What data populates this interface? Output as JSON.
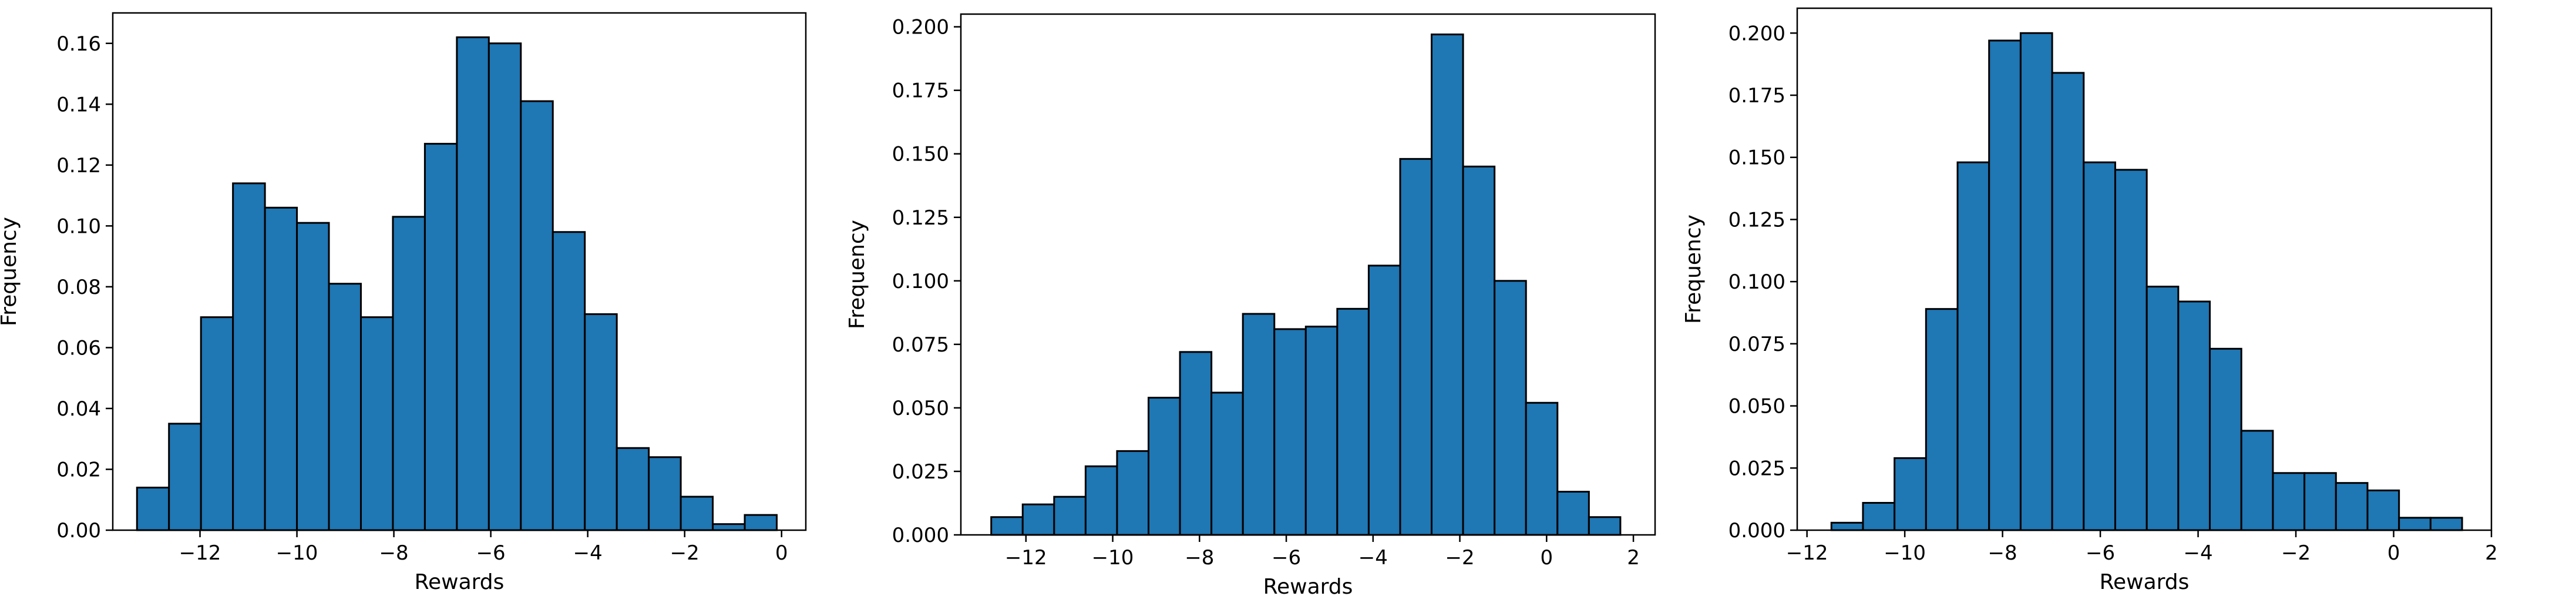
{
  "colors": {
    "bar": "#1f77b4",
    "edge": "#000000",
    "background": "#ffffff"
  },
  "chart_data": [
    {
      "type": "bar",
      "xlabel": "Rewards",
      "ylabel": "Frequency",
      "xlim": [
        -13.8,
        0.5
      ],
      "ylim": [
        0,
        0.17
      ],
      "xticks": [
        -12,
        -10,
        -8,
        -6,
        -4,
        -2,
        0
      ],
      "xtick_labels": [
        "−12",
        "−10",
        "−8",
        "−6",
        "−4",
        "−2",
        "0"
      ],
      "yticks": [
        0,
        0.02,
        0.04,
        0.06,
        0.08,
        0.1,
        0.12,
        0.14,
        0.16
      ],
      "ytick_labels": [
        "0.00",
        "0.02",
        "0.04",
        "0.06",
        "0.08",
        "0.10",
        "0.12",
        "0.14",
        "0.16"
      ],
      "bins": {
        "start": -13.3,
        "width": 0.66
      },
      "values": [
        0.014,
        0.035,
        0.07,
        0.114,
        0.106,
        0.101,
        0.081,
        0.07,
        0.103,
        0.127,
        0.162,
        0.16,
        0.141,
        0.098,
        0.071,
        0.027,
        0.024,
        0.011,
        0.002,
        0.005
      ]
    },
    {
      "type": "bar",
      "xlabel": "Rewards",
      "ylabel": "Frequency",
      "xlim": [
        -13.5,
        2.5
      ],
      "ylim": [
        0,
        0.205
      ],
      "xticks": [
        -12,
        -10,
        -8,
        -6,
        -4,
        -2,
        0,
        2
      ],
      "xtick_labels": [
        "−12",
        "−10",
        "−8",
        "−6",
        "−4",
        "−2",
        "0",
        "2"
      ],
      "yticks": [
        0,
        0.025,
        0.05,
        0.075,
        0.1,
        0.125,
        0.15,
        0.175,
        0.2
      ],
      "ytick_labels": [
        "0.000",
        "0.025",
        "0.050",
        "0.075",
        "0.100",
        "0.125",
        "0.150",
        "0.175",
        "0.200"
      ],
      "bins": {
        "start": -12.8,
        "width": 0.725
      },
      "values": [
        0.007,
        0.012,
        0.015,
        0.027,
        0.033,
        0.054,
        0.072,
        0.056,
        0.087,
        0.081,
        0.082,
        0.089,
        0.106,
        0.148,
        0.197,
        0.145,
        0.1,
        0.052,
        0.017,
        0.007
      ]
    },
    {
      "type": "bar",
      "xlabel": "Rewards",
      "ylabel": "Frequency",
      "xlim": [
        -12.2,
        2.0
      ],
      "ylim": [
        0,
        0.21
      ],
      "xticks": [
        -12,
        -10,
        -8,
        -6,
        -4,
        -2,
        0,
        2
      ],
      "xtick_labels": [
        "−12",
        "−10",
        "−8",
        "−6",
        "−4",
        "−2",
        "0",
        "2"
      ],
      "yticks": [
        0,
        0.025,
        0.05,
        0.075,
        0.1,
        0.125,
        0.15,
        0.175,
        0.2
      ],
      "ytick_labels": [
        "0.000",
        "0.025",
        "0.050",
        "0.075",
        "0.100",
        "0.125",
        "0.150",
        "0.175",
        "0.200"
      ],
      "bins": {
        "start": -11.5,
        "width": 0.645
      },
      "values": [
        0.003,
        0.011,
        0.029,
        0.089,
        0.148,
        0.197,
        0.2,
        0.184,
        0.148,
        0.145,
        0.098,
        0.092,
        0.073,
        0.04,
        0.023,
        0.023,
        0.019,
        0.016,
        0.005,
        0.005
      ]
    }
  ]
}
